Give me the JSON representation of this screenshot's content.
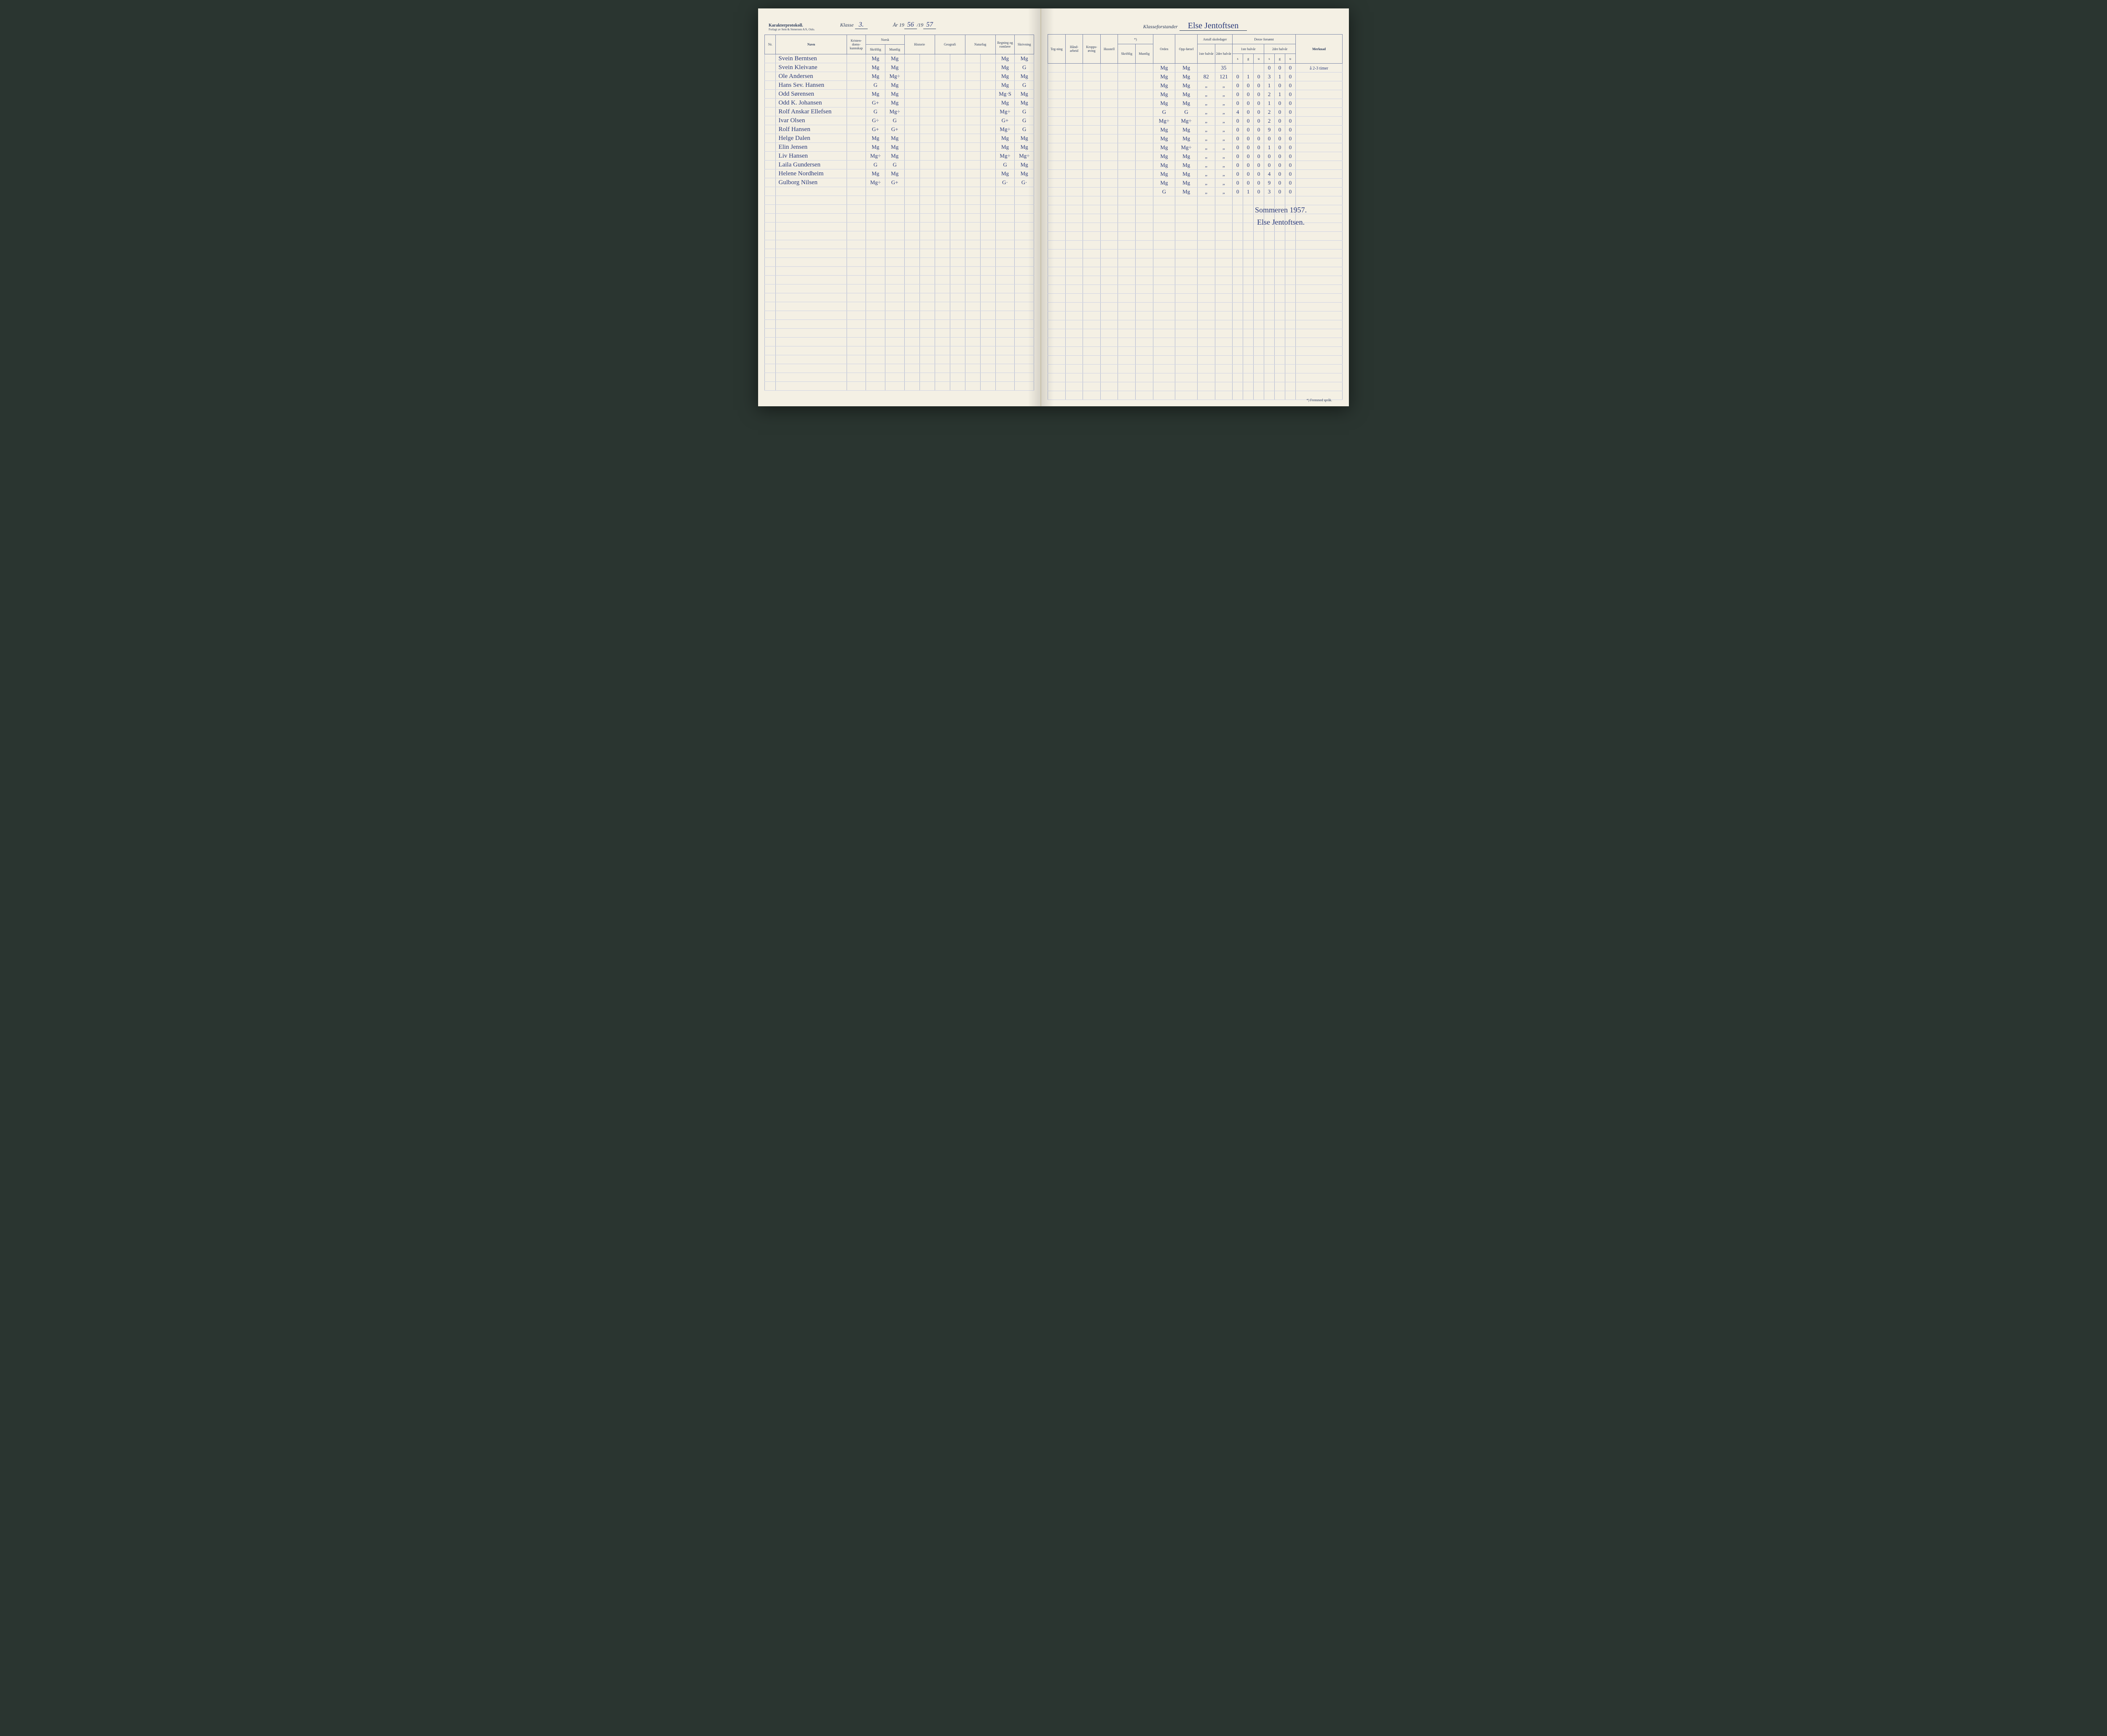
{
  "header": {
    "print_title": "Karakterprotokoll.",
    "print_sub": "Forlagt av Sem & Stenersen A/S, Oslo.",
    "klasse_label": "Klasse",
    "klasse_value": "3.",
    "ar_label": "År 19",
    "ar_value1": "56",
    "ar_sep": "/19",
    "ar_value2": "57",
    "klasseforstander_label": "Klasseforstander",
    "klasseforstander_value": "Else Jentoftsen"
  },
  "columns_left": {
    "nr": "Nr.",
    "navn": "Navn",
    "kristen": "Kristen-doms-kunnskap",
    "norsk": "Norsk",
    "norsk_skr": "Skriftlig",
    "norsk_mun": "Muntlig",
    "historie": "Historie",
    "geografi": "Geografi",
    "naturfag": "Naturfag",
    "regning": "Regning og romlære",
    "skrivning": "Skrivning"
  },
  "columns_right": {
    "tegning": "Teg-ning",
    "handarbeid": "Hånd-arbeid",
    "kroppsoving": "Kropps-øving",
    "husstell": "Husstell",
    "star": "*)",
    "star_skr": "Skriftlig",
    "star_mun": "Muntlig",
    "orden": "Orden",
    "oppforsel": "Opp-førsel",
    "antall": "Antall skoledager",
    "h1": "1ste halvår",
    "h2": "2dre halvår",
    "derav": "Derav forsømt",
    "d1": "1ste halvår",
    "d2": "2dre halvår",
    "s": "s",
    "g": "g",
    "u": "u",
    "merknad": "Merknad"
  },
  "note_top": "å 2-3 timer",
  "students": [
    {
      "name": "Svein Berntsen",
      "norsk_s": "Mg",
      "norsk_m": "Mg",
      "regning": "Mg",
      "skriv": "Mg",
      "orden": "Mg",
      "oppf": "Mg",
      "ad1": "",
      "ad2": "35",
      "f": [
        "",
        "",
        "",
        "0",
        "0",
        "0"
      ]
    },
    {
      "name": "Svein Kleivane",
      "norsk_s": "Mg",
      "norsk_m": "Mg",
      "regning": "Mg",
      "skriv": "G",
      "orden": "Mg",
      "oppf": "Mg",
      "ad1": "82",
      "ad2": "121",
      "f": [
        "0",
        "1",
        "0",
        "3",
        "1",
        "0"
      ]
    },
    {
      "name": "Ole Andersen",
      "norsk_s": "Mg",
      "norsk_m": "Mg÷",
      "regning": "Mg",
      "skriv": "Mg",
      "orden": "Mg",
      "oppf": "Mg",
      "ad1": "„",
      "ad2": "„",
      "f": [
        "0",
        "0",
        "0",
        "1",
        "0",
        "0"
      ]
    },
    {
      "name": "Hans Sev. Hansen",
      "norsk_s": "G",
      "norsk_m": "Mg",
      "regning": "Mg",
      "skriv": "G",
      "orden": "Mg",
      "oppf": "Mg",
      "ad1": "„",
      "ad2": "„",
      "f": [
        "0",
        "0",
        "0",
        "2",
        "1",
        "0"
      ]
    },
    {
      "name": "Odd Sørensen",
      "norsk_s": "Mg",
      "norsk_m": "Mg",
      "regning": "Mg·S",
      "skriv": "Mg",
      "orden": "Mg",
      "oppf": "Mg",
      "ad1": "„",
      "ad2": "„",
      "f": [
        "0",
        "0",
        "0",
        "1",
        "0",
        "0"
      ]
    },
    {
      "name": "Odd K. Johansen",
      "norsk_s": "G+",
      "norsk_m": "Mg",
      "regning": "Mg",
      "skriv": "Mg",
      "orden": "G",
      "oppf": "G",
      "ad1": "„",
      "ad2": "„",
      "f": [
        "4",
        "0",
        "0",
        "2",
        "0",
        "0"
      ]
    },
    {
      "name": "Rolf Anskar Ellefsen",
      "norsk_s": "G",
      "norsk_m": "Mg÷",
      "regning": "Mg÷",
      "skriv": "G",
      "orden": "Mg÷",
      "oppf": "Mg÷",
      "ad1": "„",
      "ad2": "„",
      "f": [
        "0",
        "0",
        "0",
        "2",
        "0",
        "0"
      ]
    },
    {
      "name": "Ivar Olsen",
      "norsk_s": "G÷",
      "norsk_m": "G",
      "regning": "G+",
      "skriv": "G",
      "orden": "Mg",
      "oppf": "Mg",
      "ad1": "„",
      "ad2": "„",
      "f": [
        "0",
        "0",
        "0",
        "9",
        "0",
        "0"
      ]
    },
    {
      "name": "Rolf Hansen",
      "norsk_s": "G+",
      "norsk_m": "G+",
      "regning": "Mg÷",
      "skriv": "G",
      "orden": "Mg",
      "oppf": "Mg",
      "ad1": "„",
      "ad2": "„",
      "f": [
        "0",
        "0",
        "0",
        "0",
        "0",
        "0"
      ]
    },
    {
      "name": "Helge Dalen",
      "norsk_s": "Mg",
      "norsk_m": "Mg",
      "regning": "Mg",
      "skriv": "Mg",
      "orden": "Mg",
      "oppf": "Mg÷",
      "ad1": "„",
      "ad2": "„",
      "f": [
        "0",
        "0",
        "0",
        "1",
        "0",
        "0"
      ]
    },
    {
      "name": "Elin Jensen",
      "norsk_s": "Mg",
      "norsk_m": "Mg",
      "regning": "Mg",
      "skriv": "Mg",
      "orden": "Mg",
      "oppf": "Mg",
      "ad1": "„",
      "ad2": "„",
      "f": [
        "0",
        "0",
        "0",
        "0",
        "0",
        "0"
      ]
    },
    {
      "name": "Liv Hansen",
      "norsk_s": "Mg÷",
      "norsk_m": "Mg",
      "regning": "Mg÷",
      "skriv": "Mg÷",
      "orden": "Mg",
      "oppf": "Mg",
      "ad1": "„",
      "ad2": "„",
      "f": [
        "0",
        "0",
        "0",
        "0",
        "0",
        "0"
      ]
    },
    {
      "name": "Laila Gundersen",
      "norsk_s": "G",
      "norsk_m": "G",
      "regning": "G",
      "skriv": "Mg",
      "orden": "Mg",
      "oppf": "Mg",
      "ad1": "„",
      "ad2": "„",
      "f": [
        "0",
        "0",
        "0",
        "4",
        "0",
        "0"
      ]
    },
    {
      "name": "Helene Nordheim",
      "norsk_s": "Mg",
      "norsk_m": "Mg",
      "regning": "Mg",
      "skriv": "Mg",
      "orden": "Mg",
      "oppf": "Mg",
      "ad1": "„",
      "ad2": "„",
      "f": [
        "0",
        "0",
        "0",
        "9",
        "0",
        "0"
      ]
    },
    {
      "name": "Gulborg Nilsen",
      "norsk_s": "Mg÷",
      "norsk_m": "G+",
      "regning": "G·",
      "skriv": "G·",
      "orden": "G",
      "oppf": "Mg",
      "ad1": "„",
      "ad2": "„",
      "f": [
        "0",
        "1",
        "0",
        "3",
        "0",
        "0"
      ]
    }
  ],
  "signature": {
    "line1": "Sommeren 1957.",
    "line2": "Else Jentoftsen."
  },
  "footnote": "*) Fremmed språk.",
  "style": {
    "paper_bg": "#f4f0e4",
    "rule_color": "#b0b8d0",
    "border_color": "#7a86a8",
    "print_text": "#2a3a5a",
    "ink": "#2a3a7a"
  }
}
